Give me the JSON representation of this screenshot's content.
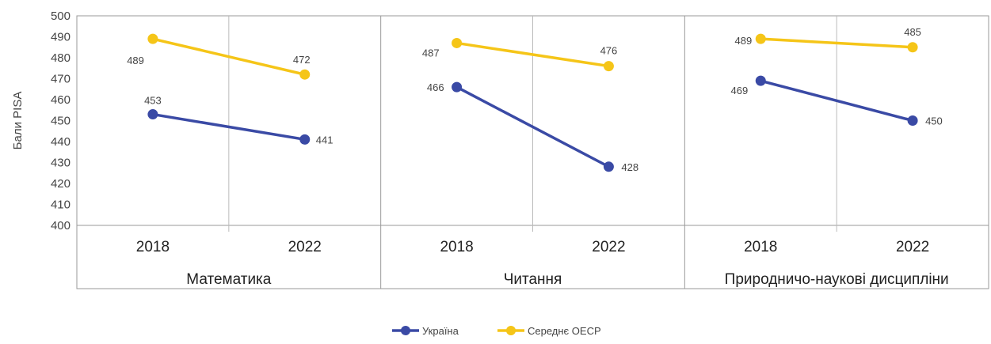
{
  "chart_data": {
    "type": "line",
    "title": "",
    "ylabel": "Бали PISA",
    "ylim": [
      400,
      500
    ],
    "yticks": [
      "400",
      "410",
      "420",
      "430",
      "440",
      "450",
      "460",
      "470",
      "480",
      "490",
      "500"
    ],
    "grid": "vertical separators only",
    "legend_position": "bottom",
    "groups": [
      {
        "name": "Математика",
        "categories": [
          "2018",
          "2022"
        ]
      },
      {
        "name": "Читання",
        "categories": [
          "2018",
          "2022"
        ]
      },
      {
        "name": "Природничо-наукові дисципліни",
        "categories": [
          "2018",
          "2022"
        ]
      }
    ],
    "series": [
      {
        "name": "Україна",
        "color": "#3a4aa5",
        "values": [
          [
            453,
            441
          ],
          [
            466,
            428
          ],
          [
            469,
            450
          ]
        ],
        "labels": [
          [
            "453",
            "441"
          ],
          [
            "466",
            "428"
          ],
          [
            "469",
            "450"
          ]
        ]
      },
      {
        "name": "Середнє ОЕСР",
        "color": "#f5c518",
        "values": [
          [
            489,
            472
          ],
          [
            487,
            476
          ],
          [
            489,
            485
          ]
        ],
        "labels": [
          [
            "489",
            "472"
          ],
          [
            "487",
            "476"
          ],
          [
            "489",
            "485"
          ]
        ]
      }
    ]
  }
}
